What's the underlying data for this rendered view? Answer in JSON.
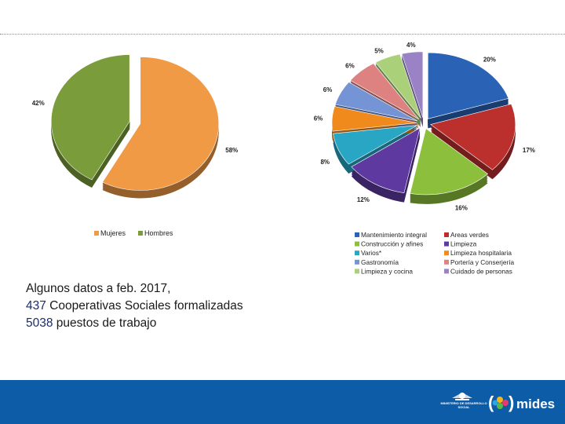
{
  "caption": {
    "line1": "Algunos datos a feb. 2017,",
    "line2_number": "437",
    "line2_text": " Cooperativas Sociales formalizadas",
    "line3_number": "5038",
    "line3_text": " puestos de trabajo"
  },
  "footer": {
    "ministry_text": "MINISTERIO DE DESARROLLO SOCIAL",
    "brand": "mides",
    "colors": {
      "band": "#0d5ca8",
      "brand_text": "#ffffff"
    }
  },
  "chart_data": [
    {
      "type": "pie",
      "title": "",
      "exploded": true,
      "three_d": true,
      "legend_position": "bottom",
      "slices": [
        {
          "name": "Mujeres",
          "value": 58,
          "label": "58%",
          "color": "#f09a46"
        },
        {
          "name": "Hombres",
          "value": 42,
          "label": "42%",
          "color": "#7a9c3a"
        }
      ]
    },
    {
      "type": "pie",
      "title": "",
      "exploded": true,
      "three_d": true,
      "legend_position": "bottom",
      "slices": [
        {
          "name": "Mantenimiento integral",
          "value": 20,
          "label": "20%",
          "color": "#2a62b6"
        },
        {
          "name": "Areas verdes",
          "value": 17,
          "label": "17%",
          "color": "#bb2f2d"
        },
        {
          "name": "Construcción y afines",
          "value": 16,
          "label": "16%",
          "color": "#8cc03c"
        },
        {
          "name": "Limpieza",
          "value": 12,
          "label": "12%",
          "color": "#5e3aa0"
        },
        {
          "name": "Varios*",
          "value": 8,
          "label": "8%",
          "color": "#29a6c4"
        },
        {
          "name": "Limpieza hospitalaria",
          "value": 6,
          "label": "6%",
          "color": "#f08a1c"
        },
        {
          "name": "Gastronomía",
          "value": 6,
          "label": "6%",
          "color": "#7494d6"
        },
        {
          "name": "Portería y Conserjería",
          "value": 6,
          "label": "6%",
          "color": "#dd8280"
        },
        {
          "name": "Limpieza y cocina",
          "value": 5,
          "label": "5%",
          "color": "#aad07a"
        },
        {
          "name": "Cuidado de personas",
          "value": 4,
          "label": "4%",
          "color": "#9a82c6"
        }
      ]
    }
  ]
}
